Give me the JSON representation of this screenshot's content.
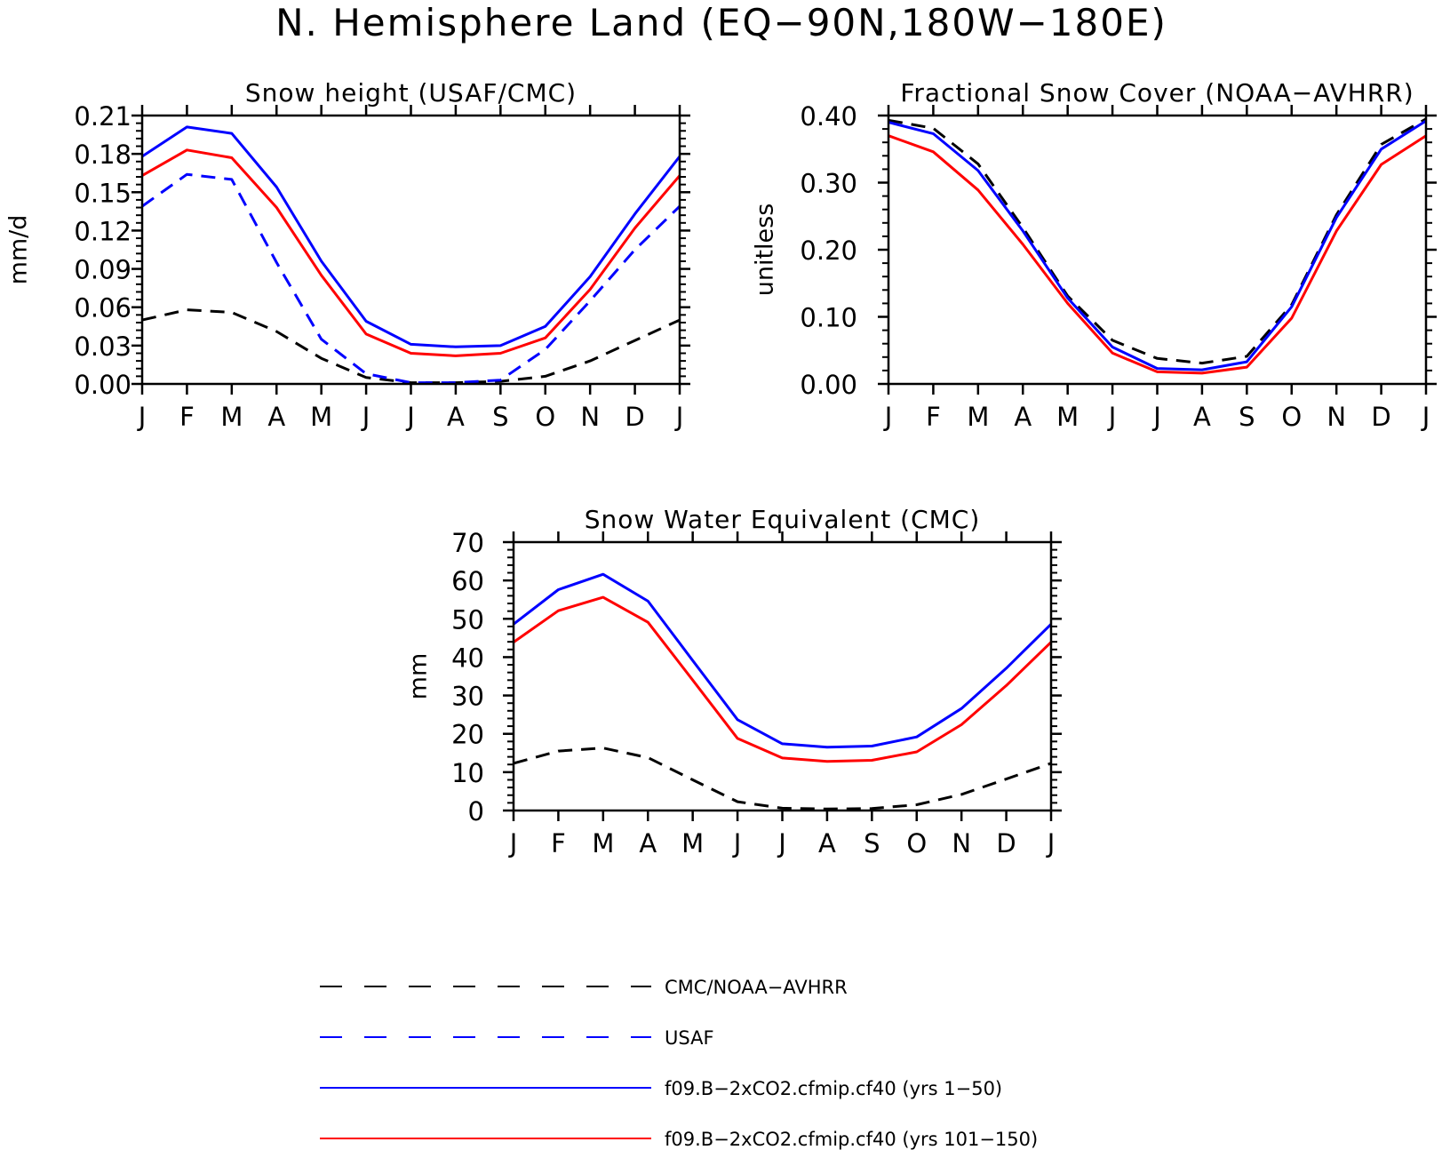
{
  "figure": {
    "title": "N. Hemisphere Land (EQ−90N,180W−180E)"
  },
  "styles": {
    "obs_black": {
      "color": "#000000",
      "dash": "dashed"
    },
    "obs_blue": {
      "color": "#0000ff",
      "dash": "dashed"
    },
    "model_early": {
      "color": "#0000ff",
      "dash": "solid"
    },
    "model_late": {
      "color": "#ff0000",
      "dash": "solid"
    }
  },
  "legend": [
    {
      "label": "CMC/NOAA−AVHRR",
      "style": "obs_black"
    },
    {
      "label": "USAF",
      "style": "obs_blue"
    },
    {
      "label": "f09.B−2xCO2.cfmip.cf40 (yrs 1−50)",
      "style": "model_early"
    },
    {
      "label": "f09.B−2xCO2.cfmip.cf40 (yrs 101−150)",
      "style": "model_late"
    }
  ],
  "chart_data": [
    {
      "type": "line",
      "title": "Snow height (USAF/CMC)",
      "ylabel": "mm/d",
      "xlabel": "",
      "categories": [
        "J",
        "F",
        "M",
        "A",
        "M",
        "J",
        "J",
        "A",
        "S",
        "O",
        "N",
        "D",
        "J"
      ],
      "ylim": [
        0,
        0.21
      ],
      "yticks": [
        "0.00",
        "0.03",
        "0.06",
        "0.09",
        "0.12",
        "0.15",
        "0.18",
        "0.21"
      ],
      "grid": false,
      "series": [
        {
          "style": "obs_black",
          "values": [
            0.05,
            0.058,
            0.056,
            0.041,
            0.02,
            0.005,
            0.001,
            0.001,
            0.002,
            0.006,
            0.018,
            0.034,
            0.05
          ]
        },
        {
          "style": "obs_blue",
          "values": [
            0.139,
            0.164,
            0.16,
            0.095,
            0.035,
            0.008,
            0.001,
            0.001,
            0.003,
            0.027,
            0.065,
            0.105,
            0.139
          ]
        },
        {
          "style": "model_early",
          "values": [
            0.178,
            0.201,
            0.196,
            0.154,
            0.096,
            0.049,
            0.031,
            0.029,
            0.03,
            0.045,
            0.084,
            0.133,
            0.178
          ]
        },
        {
          "style": "model_late",
          "values": [
            0.163,
            0.183,
            0.177,
            0.138,
            0.085,
            0.039,
            0.024,
            0.022,
            0.024,
            0.036,
            0.074,
            0.122,
            0.163
          ]
        }
      ]
    },
    {
      "type": "line",
      "title": "Fractional Snow Cover (NOAA−AVHRR)",
      "ylabel": "unitless",
      "xlabel": "",
      "categories": [
        "J",
        "F",
        "M",
        "A",
        "M",
        "J",
        "J",
        "A",
        "S",
        "O",
        "N",
        "D",
        "J"
      ],
      "ylim": [
        0,
        0.4
      ],
      "yticks": [
        "0.00",
        "0.10",
        "0.20",
        "0.30",
        "0.40"
      ],
      "grid": false,
      "series": [
        {
          "style": "obs_black",
          "values": [
            0.393,
            0.381,
            0.328,
            0.233,
            0.131,
            0.065,
            0.038,
            0.031,
            0.041,
            0.118,
            0.252,
            0.357,
            0.395
          ]
        },
        {
          "style": "model_early",
          "values": [
            0.39,
            0.373,
            0.318,
            0.228,
            0.128,
            0.055,
            0.023,
            0.021,
            0.033,
            0.115,
            0.248,
            0.35,
            0.392
          ]
        },
        {
          "style": "model_late",
          "values": [
            0.37,
            0.346,
            0.289,
            0.208,
            0.12,
            0.046,
            0.018,
            0.016,
            0.025,
            0.098,
            0.228,
            0.327,
            0.37
          ]
        }
      ]
    },
    {
      "type": "line",
      "title": "Snow Water Equivalent (CMC)",
      "ylabel": "mm",
      "xlabel": "",
      "categories": [
        "J",
        "F",
        "M",
        "A",
        "M",
        "J",
        "J",
        "A",
        "S",
        "O",
        "N",
        "D",
        "J"
      ],
      "ylim": [
        0,
        70
      ],
      "yticks": [
        "0",
        "10",
        "20",
        "30",
        "40",
        "50",
        "60",
        "70"
      ],
      "grid": false,
      "series": [
        {
          "style": "obs_black",
          "values": [
            12.3,
            15.5,
            16.3,
            13.8,
            8.0,
            2.3,
            0.6,
            0.4,
            0.5,
            1.5,
            4.2,
            8.2,
            12.3
          ]
        },
        {
          "style": "model_early",
          "values": [
            48.6,
            57.6,
            61.6,
            54.6,
            39.1,
            23.7,
            17.4,
            16.5,
            16.8,
            19.2,
            26.6,
            37.1,
            48.6
          ]
        },
        {
          "style": "model_late",
          "values": [
            43.9,
            52.1,
            55.6,
            49.1,
            34.0,
            18.8,
            13.7,
            12.8,
            13.1,
            15.3,
            22.4,
            32.6,
            43.9
          ]
        }
      ]
    }
  ]
}
